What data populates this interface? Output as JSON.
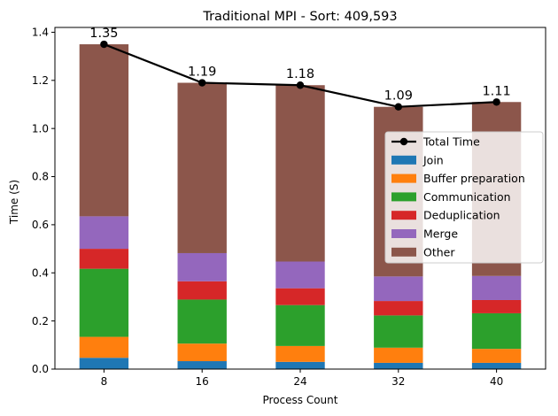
{
  "chart_data": {
    "type": "bar",
    "stacked": true,
    "title": "Traditional MPI - Sort: 409,593",
    "xlabel": "Process Count",
    "ylabel": "Time (S)",
    "ylim": [
      0,
      1.42
    ],
    "yticks": [
      "0.0",
      "0.2",
      "0.4",
      "0.6",
      "0.8",
      "1.0",
      "1.2",
      "1.4"
    ],
    "ytick_values": [
      0,
      0.2,
      0.4,
      0.6,
      0.8,
      1.0,
      1.2,
      1.4
    ],
    "categories": [
      "8",
      "16",
      "24",
      "32",
      "40"
    ],
    "grid": false,
    "legend_position": "center-right",
    "series": [
      {
        "name": "Join",
        "color": "#1f77b4",
        "values": [
          0.047,
          0.033,
          0.03,
          0.026,
          0.026
        ]
      },
      {
        "name": "Buffer preparation",
        "color": "#ff7f0e",
        "values": [
          0.087,
          0.073,
          0.066,
          0.063,
          0.058
        ]
      },
      {
        "name": "Communication",
        "color": "#2ca02c",
        "values": [
          0.283,
          0.183,
          0.17,
          0.134,
          0.148
        ]
      },
      {
        "name": "Deduplication",
        "color": "#d62728",
        "values": [
          0.083,
          0.076,
          0.07,
          0.06,
          0.055
        ]
      },
      {
        "name": "Merge",
        "color": "#9467bd",
        "values": [
          0.135,
          0.117,
          0.111,
          0.102,
          0.1
        ]
      },
      {
        "name": "Other",
        "color": "#8c564b",
        "values": [
          0.715,
          0.708,
          0.733,
          0.705,
          0.723
        ]
      }
    ],
    "total_line": {
      "name": "Total Time",
      "color": "#000000",
      "values": [
        1.35,
        1.19,
        1.18,
        1.09,
        1.11
      ],
      "labels": [
        "1.35",
        "1.19",
        "1.18",
        "1.09",
        "1.11"
      ]
    }
  }
}
